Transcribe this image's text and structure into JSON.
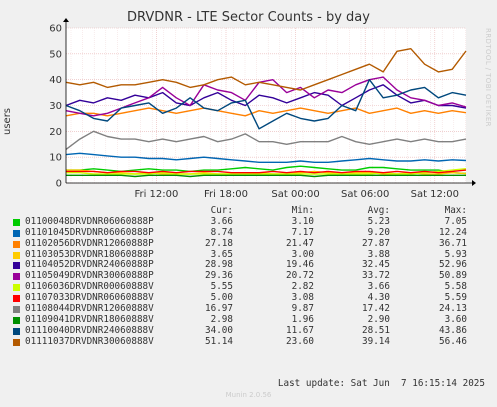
{
  "title": "DRVDNR - LTE Sector Counts - by day",
  "side_brand": "RRDTOOL / TOBI OETIKER",
  "footer": "Munin 2.0.56",
  "last_update": "Last update: Sat Jun  7 16:15:14 2025",
  "legend_headers": {
    "cur": "Cur:",
    "min": "Min:",
    "avg": "Avg:",
    "max": "Max:"
  },
  "chart_data": {
    "type": "line",
    "ylabel": "users",
    "ylim": [
      0,
      60
    ],
    "yticks": [
      0,
      10,
      20,
      30,
      40,
      50,
      60
    ],
    "xlim": [
      0,
      1
    ],
    "xticks": [
      {
        "pos": 0.226,
        "label": "Fri 12:00"
      },
      {
        "pos": 0.4,
        "label": "Fri 18:00"
      },
      {
        "pos": 0.574,
        "label": "Sat 00:00"
      },
      {
        "pos": 0.748,
        "label": "Sat 06:00"
      },
      {
        "pos": 0.922,
        "label": "Sat 12:00"
      }
    ],
    "grid": true,
    "series": [
      {
        "name": "01100048DRVDNR06060888P",
        "color": "#00cc00",
        "cur": "3.66",
        "min": "3.10",
        "avg": "5.23",
        "max": "7.05",
        "values": [
          5,
          5,
          5.5,
          5,
          4.5,
          5,
          5.5,
          5,
          5,
          4.5,
          5,
          5,
          5.5,
          6,
          5.5,
          5,
          6,
          6.5,
          6,
          5.5,
          5,
          5,
          6,
          6,
          5.5,
          5,
          5,
          5,
          4,
          3.7
        ]
      },
      {
        "name": "01101045DRVDNR06060888P",
        "color": "#0066b3",
        "cur": "8.74",
        "min": "7.17",
        "avg": "9.20",
        "max": "12.24",
        "values": [
          11,
          11.5,
          11,
          10.5,
          10,
          10,
          9.5,
          9.5,
          9,
          9.5,
          10,
          9.5,
          9,
          8.5,
          8,
          8,
          8,
          8.5,
          8,
          8,
          8.5,
          9,
          9.5,
          9,
          8.5,
          8.5,
          9,
          8.5,
          9,
          8.7
        ]
      },
      {
        "name": "01102056DRVDNR12060888P",
        "color": "#ff8000",
        "cur": "27.18",
        "min": "21.47",
        "avg": "27.87",
        "max": "36.71",
        "values": [
          26,
          27,
          27,
          26,
          27,
          28,
          29,
          28,
          27,
          28,
          29,
          28,
          27,
          26,
          28,
          27,
          28,
          29,
          28,
          27,
          28,
          29,
          27,
          28,
          29,
          27,
          28,
          27,
          28,
          27.2
        ]
      },
      {
        "name": "01103053DRVDNR18060888P",
        "color": "#ffcc00",
        "cur": "3.65",
        "min": "3.00",
        "avg": "3.88",
        "max": "5.93",
        "values": [
          5,
          5,
          4.5,
          4,
          4,
          3.5,
          4,
          3.5,
          3.5,
          3.5,
          4,
          3.5,
          3.5,
          3.5,
          4,
          3.5,
          3.5,
          4,
          4.5,
          4,
          3.5,
          4,
          4,
          3.5,
          3.5,
          4,
          3.5,
          3.5,
          4,
          3.65
        ]
      },
      {
        "name": "01104052DRVDNR24060888P",
        "color": "#330099",
        "cur": "28.98",
        "min": "19.46",
        "avg": "32.45",
        "max": "52.96",
        "values": [
          30,
          32,
          31,
          33,
          32,
          34,
          33,
          35,
          31,
          30,
          33,
          35,
          32,
          30,
          34,
          33,
          31,
          33,
          35,
          34,
          30,
          33,
          36,
          38,
          34,
          31,
          32,
          30,
          30,
          29
        ]
      },
      {
        "name": "01105049DRVDNR30060888P",
        "color": "#990099",
        "cur": "29.36",
        "min": "20.72",
        "avg": "33.72",
        "max": "50.89",
        "values": [
          28,
          27,
          26,
          27,
          29,
          31,
          33,
          37,
          33,
          30,
          38,
          36,
          35,
          32,
          39,
          40,
          35,
          37,
          33,
          36,
          35,
          38,
          40,
          41,
          36,
          33,
          32,
          30,
          31,
          29.4
        ]
      },
      {
        "name": "01106036DRVDNR00060888V",
        "color": "#ccff00",
        "cur": "5.55",
        "min": "2.82",
        "avg": "3.66",
        "max": "5.58",
        "values": [
          4,
          4,
          3.5,
          3.5,
          3.5,
          3.5,
          3.5,
          4,
          3.5,
          3.5,
          3.5,
          3.5,
          3.5,
          3.5,
          3.5,
          3.5,
          3.5,
          3.5,
          3.5,
          3.5,
          3.5,
          3.5,
          3.5,
          4,
          3.5,
          3.5,
          4,
          4.5,
          5,
          5.55
        ]
      },
      {
        "name": "01107033DRVDNR06060888V",
        "color": "#ff0000",
        "cur": "5.00",
        "min": "3.08",
        "avg": "4.30",
        "max": "5.59",
        "values": [
          4.5,
          4.5,
          4.5,
          4,
          4.5,
          4.5,
          4,
          4.5,
          4,
          4.5,
          4.5,
          4.5,
          4,
          4,
          4,
          4.5,
          4,
          4.5,
          4,
          4.5,
          4,
          4.5,
          4.5,
          4,
          4.5,
          4,
          4.5,
          4,
          4.5,
          5
        ]
      },
      {
        "name": "01108044DRVDNR12060888V",
        "color": "#808080",
        "cur": "16.97",
        "min": "9.87",
        "avg": "17.42",
        "max": "24.13",
        "values": [
          13,
          17,
          20,
          18,
          17,
          17,
          16,
          17,
          16,
          17,
          18,
          16,
          17,
          19,
          16,
          16,
          15,
          16,
          16,
          16,
          18,
          16,
          15,
          16,
          17,
          16,
          17,
          16,
          16,
          17
        ]
      },
      {
        "name": "01109041DRVDNR18060888V",
        "color": "#008f00",
        "cur": "2.98",
        "min": "1.96",
        "avg": "2.90",
        "max": "3.60",
        "values": [
          3,
          3,
          3,
          3,
          3,
          2.5,
          3,
          3,
          3,
          2.5,
          3,
          3,
          3,
          3,
          3,
          3,
          3,
          3,
          2.5,
          3,
          3,
          3,
          3,
          3,
          3,
          3,
          3,
          3,
          3,
          3
        ]
      },
      {
        "name": "01110040DRVDNR24060888V",
        "color": "#00487d",
        "cur": "34.00",
        "min": "11.67",
        "avg": "28.51",
        "max": "43.86",
        "values": [
          30,
          28,
          25,
          24,
          29,
          30,
          31,
          27,
          29,
          33,
          29,
          28,
          31,
          32,
          21,
          24,
          27,
          25,
          24,
          25,
          30,
          28,
          40,
          33,
          34,
          36,
          37,
          33,
          35,
          34
        ]
      },
      {
        "name": "01111037DRVDNR30060888V",
        "color": "#b35a00",
        "cur": "51.14",
        "min": "23.60",
        "avg": "39.14",
        "max": "56.46",
        "values": [
          39,
          38,
          39,
          37,
          38,
          38,
          39,
          40,
          39,
          37,
          38,
          40,
          41,
          38,
          39,
          38,
          37,
          36,
          38,
          40,
          42,
          44,
          46,
          43,
          51,
          52,
          46,
          43,
          44,
          51.1
        ]
      }
    ]
  }
}
